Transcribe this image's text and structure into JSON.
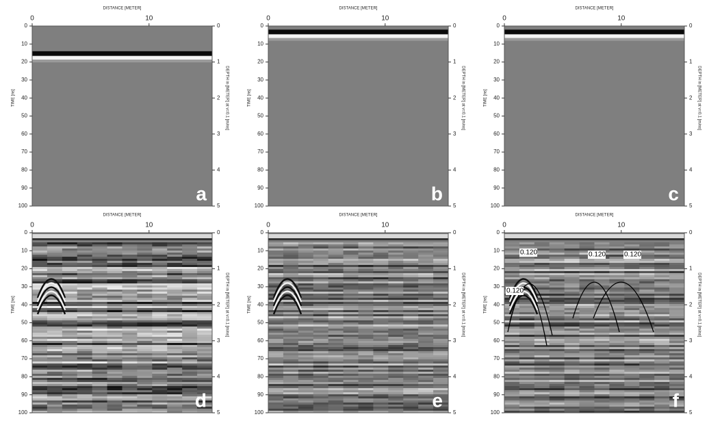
{
  "chart_data": [
    {
      "type": "radargram",
      "xlabel": "DISTANCE [METER]",
      "ylabel": "TIME [ns]",
      "y2label": "DEPTH in [METER] at v=0.1 [m/ns]",
      "xlim": [
        0,
        15.4
      ],
      "xticks": [
        0,
        10
      ],
      "ylim": [
        0,
        100
      ],
      "yticks": [
        0,
        10,
        20,
        30,
        40,
        50,
        60,
        70,
        80,
        90,
        100
      ],
      "y2lim": [
        0,
        5
      ],
      "y2ticks": [
        0,
        1,
        2,
        3,
        4,
        5
      ],
      "y_inverted": true,
      "panel_label": "a"
    },
    {
      "type": "radargram",
      "xlabel": "DISTANCE [METER]",
      "ylabel": "TIME [ns]",
      "y2label": "DEPTH in [METER] at v=0.1 [m/ns]",
      "xlim": [
        0,
        15.4
      ],
      "xticks": [
        0,
        10
      ],
      "ylim": [
        0,
        100
      ],
      "yticks": [
        0,
        10,
        20,
        30,
        40,
        50,
        60,
        70,
        80,
        90,
        100
      ],
      "y2lim": [
        0,
        5
      ],
      "y2ticks": [
        0,
        1,
        2,
        3,
        4,
        5
      ],
      "y_inverted": true,
      "panel_label": "b"
    },
    {
      "type": "radargram",
      "xlabel": "DISTANCE [METER]",
      "ylabel": "TIME [ns]",
      "y2label": "DEPTH in [METER] at v=0.1 [m/ns]",
      "xlim": [
        0,
        15.4
      ],
      "xticks": [
        0,
        10
      ],
      "ylim": [
        0,
        100
      ],
      "yticks": [
        0,
        10,
        20,
        30,
        40,
        50,
        60,
        70,
        80,
        90,
        100
      ],
      "y2lim": [
        0,
        5
      ],
      "y2ticks": [
        0,
        1,
        2,
        3,
        4,
        5
      ],
      "y_inverted": true,
      "panel_label": "c"
    },
    {
      "type": "radargram",
      "xlabel": "DISTANCE [METER]",
      "ylabel": "TIME [ns]",
      "y2label": "DEPTH in [METER] at v=0.1 [m/ns]",
      "xlim": [
        0,
        15.4
      ],
      "xticks": [
        0,
        10
      ],
      "ylim": [
        0,
        100
      ],
      "yticks": [
        0,
        10,
        20,
        30,
        40,
        50,
        60,
        70,
        80,
        90,
        100
      ],
      "y2lim": [
        0,
        5
      ],
      "y2ticks": [
        0,
        1,
        2,
        3,
        4,
        5
      ],
      "y_inverted": true,
      "panel_label": "d"
    },
    {
      "type": "radargram",
      "xlabel": "DISTANCE [METER]",
      "ylabel": "TIME [ns]",
      "y2label": "DEPTH in [METER] at v=0.1 [m/ns]",
      "xlim": [
        0,
        15.4
      ],
      "xticks": [
        0,
        10
      ],
      "ylim": [
        0,
        100
      ],
      "yticks": [
        0,
        10,
        20,
        30,
        40,
        50,
        60,
        70,
        80,
        90,
        100
      ],
      "y2lim": [
        0,
        5
      ],
      "y2ticks": [
        0,
        1,
        2,
        3,
        4,
        5
      ],
      "y_inverted": true,
      "panel_label": "e"
    },
    {
      "type": "radargram",
      "xlabel": "DISTANCE [METER]",
      "ylabel": "TIME [ns]",
      "y2label": "DEPTH in [METER] at v=0.1 [m/ns]",
      "xlim": [
        0,
        15.4
      ],
      "xticks": [
        0,
        10
      ],
      "ylim": [
        0,
        100
      ],
      "yticks": [
        0,
        10,
        20,
        30,
        40,
        50,
        60,
        70,
        80,
        90,
        100
      ],
      "y2lim": [
        0,
        5
      ],
      "y2ticks": [
        0,
        1,
        2,
        3,
        4,
        5
      ],
      "y_inverted": true,
      "panel_label": "f",
      "annotations": [
        "0.120",
        "0.120",
        "0.120",
        "0.120"
      ]
    }
  ]
}
